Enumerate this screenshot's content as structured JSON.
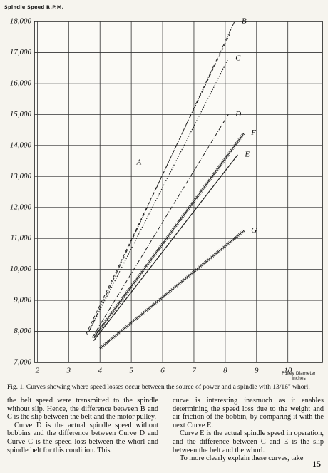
{
  "chart_data": {
    "type": "line",
    "y_label": "Spindle Speed R.P.M.",
    "x_label": "Pulley Diameter Inches",
    "xlim": [
      1.9,
      11.1
    ],
    "xticks": [
      2,
      3,
      4,
      5,
      6,
      7,
      8,
      9,
      10
    ],
    "ylim": [
      7000,
      18000
    ],
    "yticks": [
      {
        "value": 7000,
        "label": "7,000"
      },
      {
        "value": 8000,
        "label": "8,000"
      },
      {
        "value": 9000,
        "label": "9,000"
      },
      {
        "value": 10000,
        "label": "10,000"
      },
      {
        "value": 11000,
        "label": "11,000"
      },
      {
        "value": 12000,
        "label": "12,000"
      },
      {
        "value": 13000,
        "label": "13,000"
      },
      {
        "value": 14000,
        "label": "14,000"
      },
      {
        "value": 15000,
        "label": "15,000"
      },
      {
        "value": 16000,
        "label": "16,000"
      },
      {
        "value": 17000,
        "label": "17,000"
      },
      {
        "value": 18000,
        "label": "18,000"
      }
    ],
    "grid": true,
    "series": [
      {
        "name": "A",
        "color": "#222222",
        "line_style": "dashed",
        "label_at": "middle",
        "x": [
          3.55,
          8.15
        ],
        "values": [
          7900,
          17600
        ]
      },
      {
        "name": "B",
        "color": "#222222",
        "line_style": "dash-dot",
        "label_at": "end",
        "x": [
          3.65,
          8.3
        ],
        "values": [
          8000,
          18000
        ]
      },
      {
        "name": "C",
        "color": "#222222",
        "line_style": "dotted",
        "label_at": "end",
        "x": [
          3.6,
          8.1
        ],
        "values": [
          7900,
          16800
        ]
      },
      {
        "name": "D",
        "color": "#222222",
        "line_style": "dash-dot",
        "label_at": "end",
        "x": [
          3.75,
          8.1
        ],
        "values": [
          7800,
          15000
        ]
      },
      {
        "name": "E",
        "color": "#222222",
        "line_style": "solid",
        "label_at": "end",
        "x": [
          3.8,
          8.4
        ],
        "values": [
          7700,
          13700
        ]
      },
      {
        "name": "F",
        "color": "#222222",
        "line_style": "hatched",
        "label_at": "end",
        "x": [
          3.8,
          8.6
        ],
        "values": [
          7800,
          14400
        ]
      },
      {
        "name": "G",
        "color": "#222222",
        "line_style": "hatched",
        "label_at": "end",
        "x": [
          4.0,
          8.6
        ],
        "values": [
          7450,
          11250
        ]
      }
    ]
  },
  "caption": "Fig. 1. Curves showing where speed losses occur between the source of power and a spindle with 13/16\" whorl.",
  "body": {
    "columns": [
      [
        "the belt speed were transmitted to the spindle without slip. Hence, the difference between B and C is the slip between the belt and the motor pulley.",
        "Curve D is the actual spindle speed without bobbins and the difference between Curve D and Curve C is the speed loss between the whorl and spindle belt for this condition. This"
      ],
      [
        "curve is interesting inasmuch as it enables determining the speed loss due to the weight and air friction of the bobbin, by comparing it with the next Curve E.",
        "Curve E is the actual spindle speed in operation, and the difference between C and E is the slip between the belt and the whorl.",
        "To more clearly explain these curves, take"
      ]
    ]
  },
  "page_number": "15"
}
